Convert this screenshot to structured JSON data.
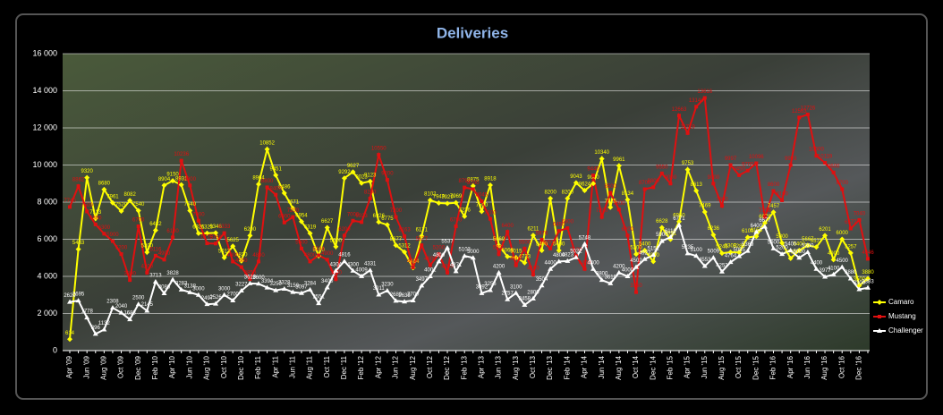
{
  "chart_data": {
    "type": "line",
    "title": "Deliveries",
    "categories": [
      "Apr '09",
      null,
      "Jun '09",
      null,
      "Aug '09",
      null,
      "Oct '09",
      null,
      "Dec '09",
      null,
      "Feb '10",
      null,
      "Apr '10",
      null,
      "Jun '10",
      null,
      "Aug '10",
      null,
      "Oct '10",
      null,
      "Dec '10",
      null,
      "Feb '11",
      null,
      "Apr '11",
      null,
      "Jun '11",
      null,
      "Aug '11",
      null,
      "Oct '11",
      null,
      "Dec '11",
      null,
      "Feb '12",
      null,
      "Apr '12",
      null,
      "Jun '12",
      null,
      "Aug '12",
      null,
      "Oct '12",
      null,
      "Dec '12",
      null,
      "Feb '13",
      null,
      "Apr '13",
      null,
      "Jun '13",
      null,
      "Aug '13",
      null,
      "Oct '13",
      null,
      "Dec '13",
      null,
      "Feb '14",
      null,
      "Apr '14",
      null,
      "Jun '14",
      null,
      "Aug '14",
      null,
      "Oct '14",
      null,
      "Dec '14",
      null,
      "Feb '15",
      null,
      "Apr '15",
      null,
      "Jun '15",
      null,
      "Aug '15",
      null,
      "Oct '15",
      null,
      "Dec '15",
      null,
      "Feb '16",
      null,
      "Apr '16",
      null,
      "Jun '16",
      null,
      "Aug '16",
      null,
      "Oct '16",
      null,
      "Dec '16",
      null
    ],
    "series": [
      {
        "name": "Camaro",
        "color": "#ffff00",
        "marker": "diamond",
        "values": [
          614,
          5463,
          9320,
          7113,
          8680,
          7961,
          7520,
          8082,
          7540,
          5300,
          6482,
          8904,
          9150,
          8931,
          7540,
          6321,
          6323,
          6346,
          5013,
          5625,
          4830,
          6200,
          8964,
          10852,
          9451,
          8486,
          7671,
          6954,
          6319,
          5100,
          6627,
          5600,
          9292,
          9627,
          9023,
          9123,
          6926,
          6775,
          5677,
          5312,
          4464,
          6171,
          8102,
          7949,
          7929,
          7969,
          7236,
          8875,
          7500,
          8918,
          5669,
          5068,
          5015,
          4733,
          6211,
          5400,
          8200,
          5400,
          8200,
          9043,
          8624,
          9000,
          10340,
          7725,
          9961,
          8134,
          5200,
          5400,
          4800,
          6628,
          5991,
          6950,
          9753,
          8613,
          7469,
          6236,
          5246,
          5303,
          5289,
          6100,
          6155,
          6879,
          7457,
          5800,
          4969,
          5400,
          5667,
          5577,
          6201,
          4900,
          6000,
          5257,
          3500,
          3880
        ]
      },
      {
        "name": "Mustang",
        "color": "#e01010",
        "marker": "square",
        "values": [
          7740,
          8862,
          7500,
          6800,
          6300,
          5900,
          5200,
          3800,
          6700,
          4200,
          5116,
          4900,
          6100,
          10236,
          8900,
          7000,
          5779,
          5768,
          6333,
          4800,
          4500,
          3850,
          4800,
          8800,
          8400,
          6900,
          7200,
          5500,
          4800,
          5134,
          4900,
          3850,
          6200,
          7000,
          6923,
          8200,
          10550,
          9200,
          7200,
          6163,
          4485,
          5677,
          4600,
          5200,
          4200,
          6700,
          8791,
          8700,
          8045,
          7100,
          5200,
          6400,
          4600,
          5500,
          4100,
          5976,
          5500,
          6450,
          6600,
          5100,
          4400,
          9440,
          7200,
          8500,
          7600,
          6200,
          3150,
          8700,
          8800,
          9550,
          9000,
          12663,
          11719,
          13144,
          13616,
          9000,
          7800,
          9997,
          9450,
          9700,
          10096,
          7198,
          8600,
          8100,
          9993,
          12563,
          12726,
          10500,
          10119,
          9600,
          8700,
          6577,
          7040,
          4946
        ]
      },
      {
        "name": "Challenger",
        "color": "#ffffff",
        "marker": "triangle",
        "values": [
          2620,
          2695,
          1778,
          896,
          1132,
          2308,
          2040,
          1683,
          2500,
          2145,
          3713,
          3086,
          3828,
          3283,
          3138,
          3000,
          2497,
          2526,
          3000,
          2700,
          3227,
          3618,
          3600,
          3394,
          3250,
          3328,
          3150,
          3097,
          3284,
          2551,
          3400,
          4304,
          4816,
          4300,
          4009,
          4331,
          3011,
          3230,
          2680,
          2638,
          2700,
          3497,
          4001,
          4800,
          5537,
          4271,
          5103,
          5000,
          3092,
          3256,
          4200,
          2757,
          3100,
          2458,
          2800,
          3504,
          4400,
          4800,
          4823,
          5022,
          5748,
          4400,
          3800,
          3619,
          4200,
          4000,
          4502,
          4927,
          5151,
          5900,
          6110,
          6771,
          5235,
          5100,
          4553,
          5009,
          4253,
          4764,
          5085,
          5369,
          6400,
          6677,
          5500,
          5200,
          5400,
          5000,
          5300,
          4400,
          3977,
          4100,
          4500,
          3880,
          3300,
          3383
        ]
      }
    ],
    "ylim": [
      0,
      16000
    ],
    "yticks": [
      0,
      {
        "value": 2000,
        "label": "2 000"
      },
      {
        "value": 4000,
        "label": "4 000"
      },
      {
        "value": 6000,
        "label": "6 000"
      },
      {
        "value": 8000,
        "label": "8 000"
      },
      {
        "value": 10000,
        "label": "10 000"
      },
      {
        "value": 12000,
        "label": "12 000"
      },
      {
        "value": 14000,
        "label": "14 000"
      },
      {
        "value": 16000,
        "label": "16 000"
      }
    ],
    "grid": true,
    "legend": "right"
  }
}
